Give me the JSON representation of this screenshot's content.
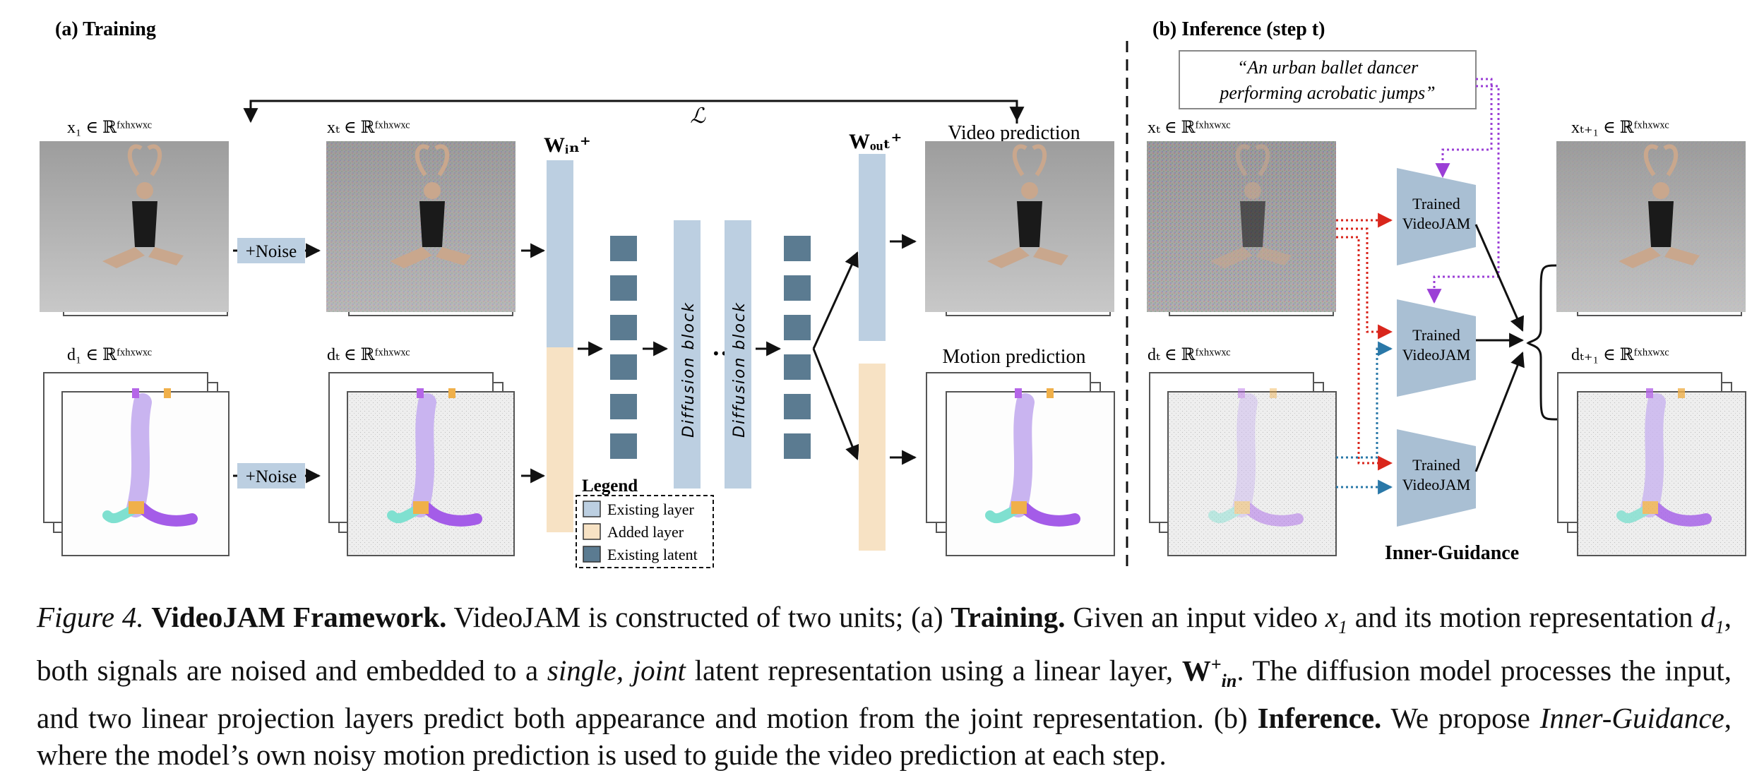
{
  "figure": {
    "panel_a_title": "(a) Training",
    "panel_b_title": "(b) Inference  (step t)",
    "loss_symbol": "ℒ",
    "labels": {
      "x1": "x₁ ∈ ℝᶠˣʰˣʷˣᶜ",
      "xt": "xₜ ∈ ℝᶠˣʰˣʷˣᶜ",
      "d1": "d₁ ∈ ℝᶠˣʰˣʷˣᶜ",
      "dt": "dₜ ∈ ℝᶠˣʰˣʷˣᶜ",
      "xt_inf": "xₜ ∈ ℝᶠˣʰˣʷˣᶜ",
      "dt_inf": "dₜ ∈ ℝᶠˣʰˣʷˣᶜ",
      "xt1": "xₜ₊₁ ∈ ℝᶠˣʰˣʷˣᶜ",
      "dt1": "dₜ₊₁ ∈ ℝᶠˣʰˣʷˣᶜ"
    },
    "noise_label": "+Noise",
    "w_in": "Wᵢₙ⁺",
    "w_out": "Wₒᵤₜ⁺",
    "diffusion_block": "Diffusion block",
    "ellipsis": "•••",
    "video_prediction": "Video prediction",
    "motion_prediction": "Motion prediction",
    "legend": {
      "title": "Legend",
      "items": [
        "Existing layer",
        "Added layer",
        "Existing latent"
      ]
    },
    "prompt_line1": "“An urban ballet dancer",
    "prompt_line2": "performing acrobatic jumps”",
    "model_line1": "Trained",
    "model_line2": "VideoJAM",
    "inner_guidance": "Inner-Guidance"
  },
  "caption": {
    "figure_label": "Figure 4.",
    "title": "VideoJAM Framework.",
    "s1": "VideoJAM is constructed of two units; (a)",
    "training": "Training.",
    "s2": "Given an input video",
    "x1": "x",
    "s3": "and its motion representation",
    "d1": "d",
    "s4": ", both signals are noised and embedded to a",
    "single_joint": "single, joint",
    "s5": "latent representation using a linear layer,",
    "w": "W",
    "s6": ". The diffusion model processes the input, and two linear projection layers predict both appearance and motion from the joint representation. (b)",
    "inference": "Inference.",
    "s7": "We propose",
    "inner_guidance": "Inner-Guidance",
    "s8": ", where the model’s own noisy motion prediction is used to guide the video prediction at each step."
  },
  "colors": {
    "existing_layer": "#bccfe1",
    "added_layer": "#f7e2c4",
    "existing_latent": "#5b7b91",
    "noise_box": "#bccfe1",
    "videojam": "#a9bfd3",
    "red_arrow": "#d9261c",
    "blue_arrow": "#2a78a8",
    "purple_arrow": "#9b3fd6"
  }
}
